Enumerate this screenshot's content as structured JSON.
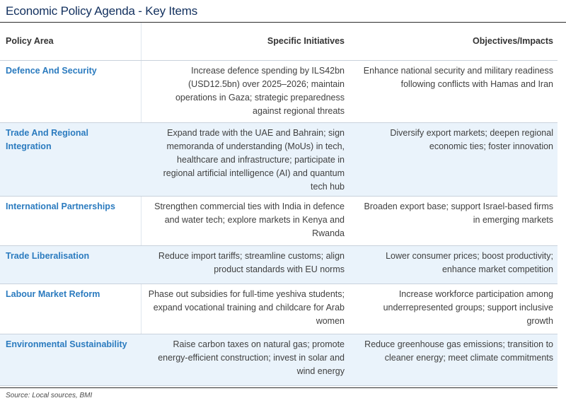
{
  "title": "Economic Policy Agenda - Key Items",
  "table": {
    "headers": {
      "policy_area": "Policy Area",
      "initiatives": "Specific Initiatives",
      "objectives": "Objectives/Impacts"
    },
    "rows": [
      {
        "area": "Defence And Security",
        "initiatives": "Increase defence spending by ILS42bn (USD12.5bn) over 2025–2026; maintain operations in Gaza; strategic preparedness against regional threats",
        "objectives": "Enhance national security and military readiness following conflicts with Hamas and Iran"
      },
      {
        "area": "Trade And Regional Integration",
        "initiatives": "Expand trade with the UAE and Bahrain; sign memoranda of understanding (MoUs) in tech, healthcare and infrastructure; participate in regional artificial intelligence (AI) and quantum tech hub",
        "objectives": "Diversify export markets; deepen regional economic ties; foster innovation"
      },
      {
        "area": "International Partnerships",
        "initiatives": "Strengthen commercial ties with India in defence and water tech; explore markets in Kenya and Rwanda",
        "objectives": "Broaden export base; support Israel-based firms in emerging markets"
      },
      {
        "area": "Trade Liberalisation",
        "initiatives": "Reduce import tariffs; streamline customs; align product standards with EU norms",
        "objectives": "Lower consumer prices; boost productivity; enhance market competition"
      },
      {
        "area": "Labour Market Reform",
        "initiatives": "Phase out subsidies for full-time yeshiva students; expand vocational training and childcare for Arab women",
        "objectives": "Increase workforce participation among underrepresented groups; support inclusive growth"
      },
      {
        "area": "Environmental Sustainability",
        "initiatives": "Raise carbon taxes on natural gas; promote energy-efficient construction; invest in solar and wind energy",
        "objectives": "Reduce greenhouse gas emissions; transition to cleaner energy; meet climate commitments"
      }
    ]
  },
  "source": "Source: Local sources, BMI",
  "colors": {
    "title": "#12305e",
    "area_text": "#2b7bbf",
    "row_shade": "#eaf3fb",
    "rule": "#c9d2dc"
  }
}
